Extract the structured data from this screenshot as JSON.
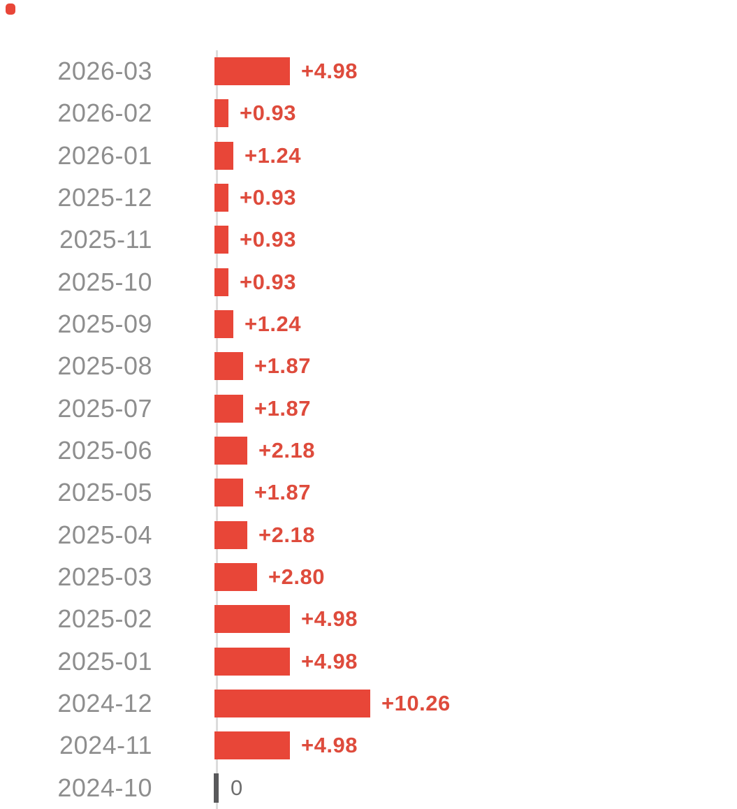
{
  "chart_data": {
    "type": "bar",
    "orientation": "horizontal",
    "title": "",
    "xlabel": "",
    "ylabel": "",
    "categories": [
      "2026-03",
      "2026-02",
      "2026-01",
      "2025-12",
      "2025-11",
      "2025-10",
      "2025-09",
      "2025-08",
      "2025-07",
      "2025-06",
      "2025-05",
      "2025-04",
      "2025-03",
      "2025-02",
      "2025-01",
      "2024-12",
      "2024-11",
      "2024-10"
    ],
    "values": [
      4.98,
      0.93,
      1.24,
      0.93,
      0.93,
      0.93,
      1.24,
      1.87,
      1.87,
      2.18,
      1.87,
      2.18,
      2.8,
      4.98,
      4.98,
      10.26,
      4.98,
      0
    ],
    "value_labels": [
      "+4.98",
      "+0.93",
      "+1.24",
      "+0.93",
      "+0.93",
      "+0.93",
      "+1.24",
      "+1.87",
      "+1.87",
      "+2.18",
      "+1.87",
      "+2.18",
      "+2.80",
      "+4.98",
      "+4.98",
      "+10.26",
      "+4.98",
      "0"
    ],
    "xlim": [
      0,
      10.26
    ],
    "grid": false,
    "legend": false,
    "colors": {
      "bar": "#e84638",
      "value_label": "#de4b3c",
      "zero_value_label": "#6f6f6f",
      "category_label": "#8e8e8e",
      "zero_tick": "#59595b",
      "axis_line": "#dcdcdc",
      "corner_indicator": "#e84638",
      "background": "#ffffff"
    }
  }
}
